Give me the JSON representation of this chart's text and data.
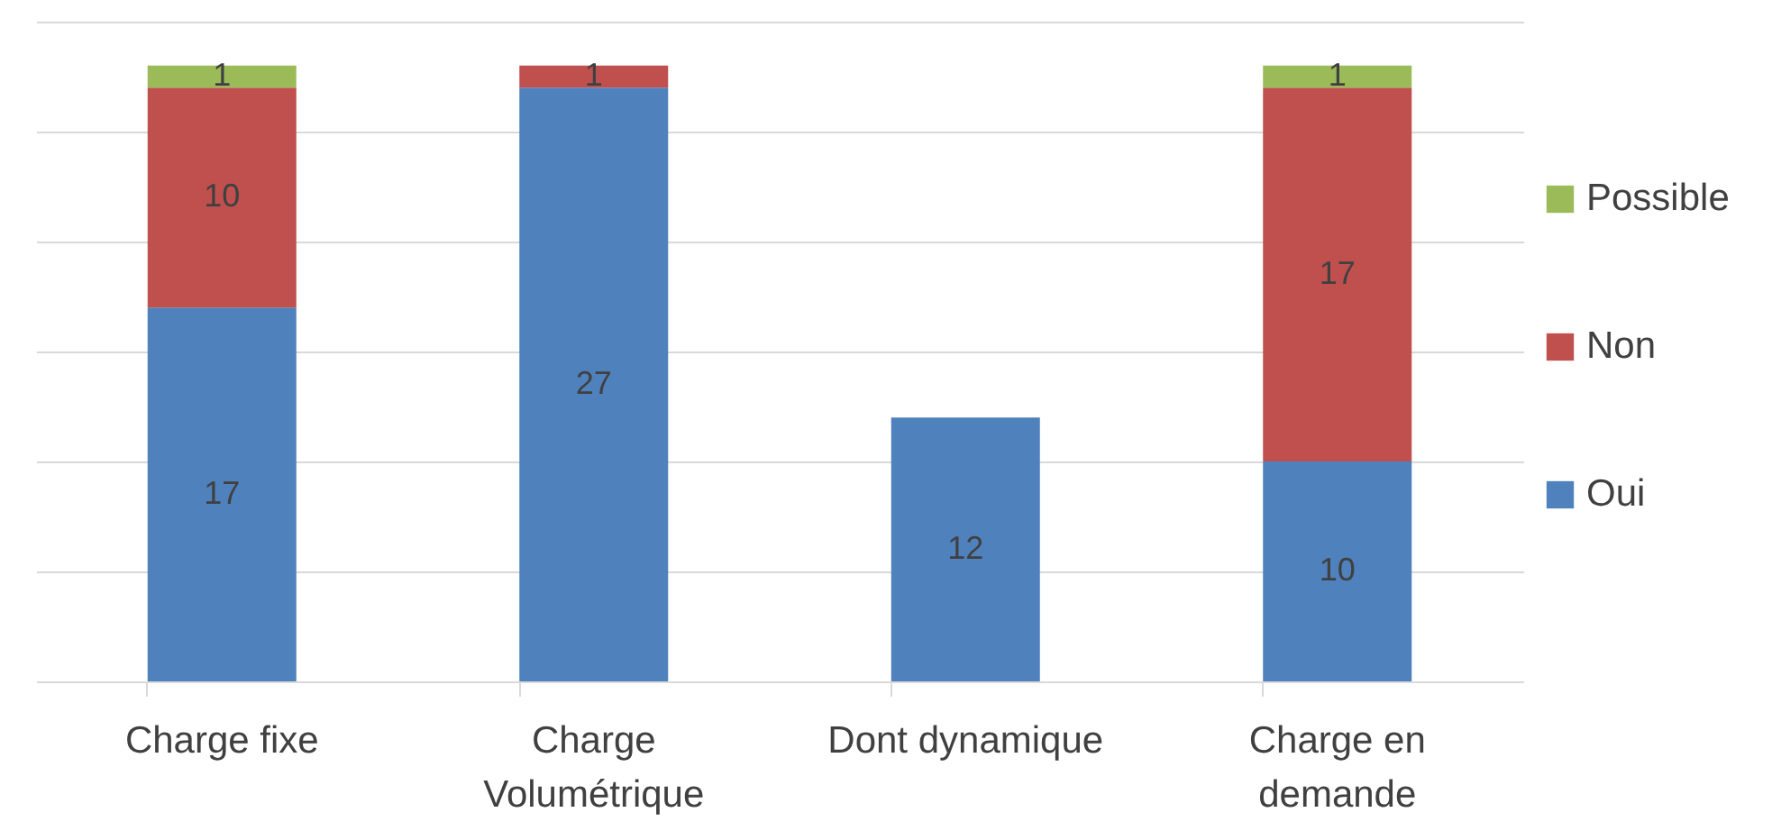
{
  "chart_data": {
    "type": "bar",
    "stacked": true,
    "categories": [
      "Charge fixe",
      "Charge Volumétrique",
      "Dont dynamique",
      "Charge en demande"
    ],
    "series": [
      {
        "name": "Oui",
        "color": "#4f81bd",
        "values": [
          17,
          27,
          12,
          10
        ]
      },
      {
        "name": "Non",
        "color": "#c0504d",
        "values": [
          10,
          1,
          null,
          17
        ]
      },
      {
        "name": "Possible",
        "color": "#9bbb59",
        "values": [
          1,
          null,
          null,
          1
        ]
      }
    ],
    "ylim": [
      0,
      30
    ],
    "yticks": [
      {
        "value": 0,
        "label": null
      },
      {
        "value": 5,
        "label": null
      },
      {
        "value": 10,
        "label": null
      },
      {
        "value": 15,
        "label": null
      },
      {
        "value": 20,
        "label": null
      },
      {
        "value": 25,
        "label": null
      },
      {
        "value": 30,
        "label": null
      }
    ],
    "grid": "y",
    "tick_labels": "x",
    "legend": "right",
    "data_labels": true
  }
}
